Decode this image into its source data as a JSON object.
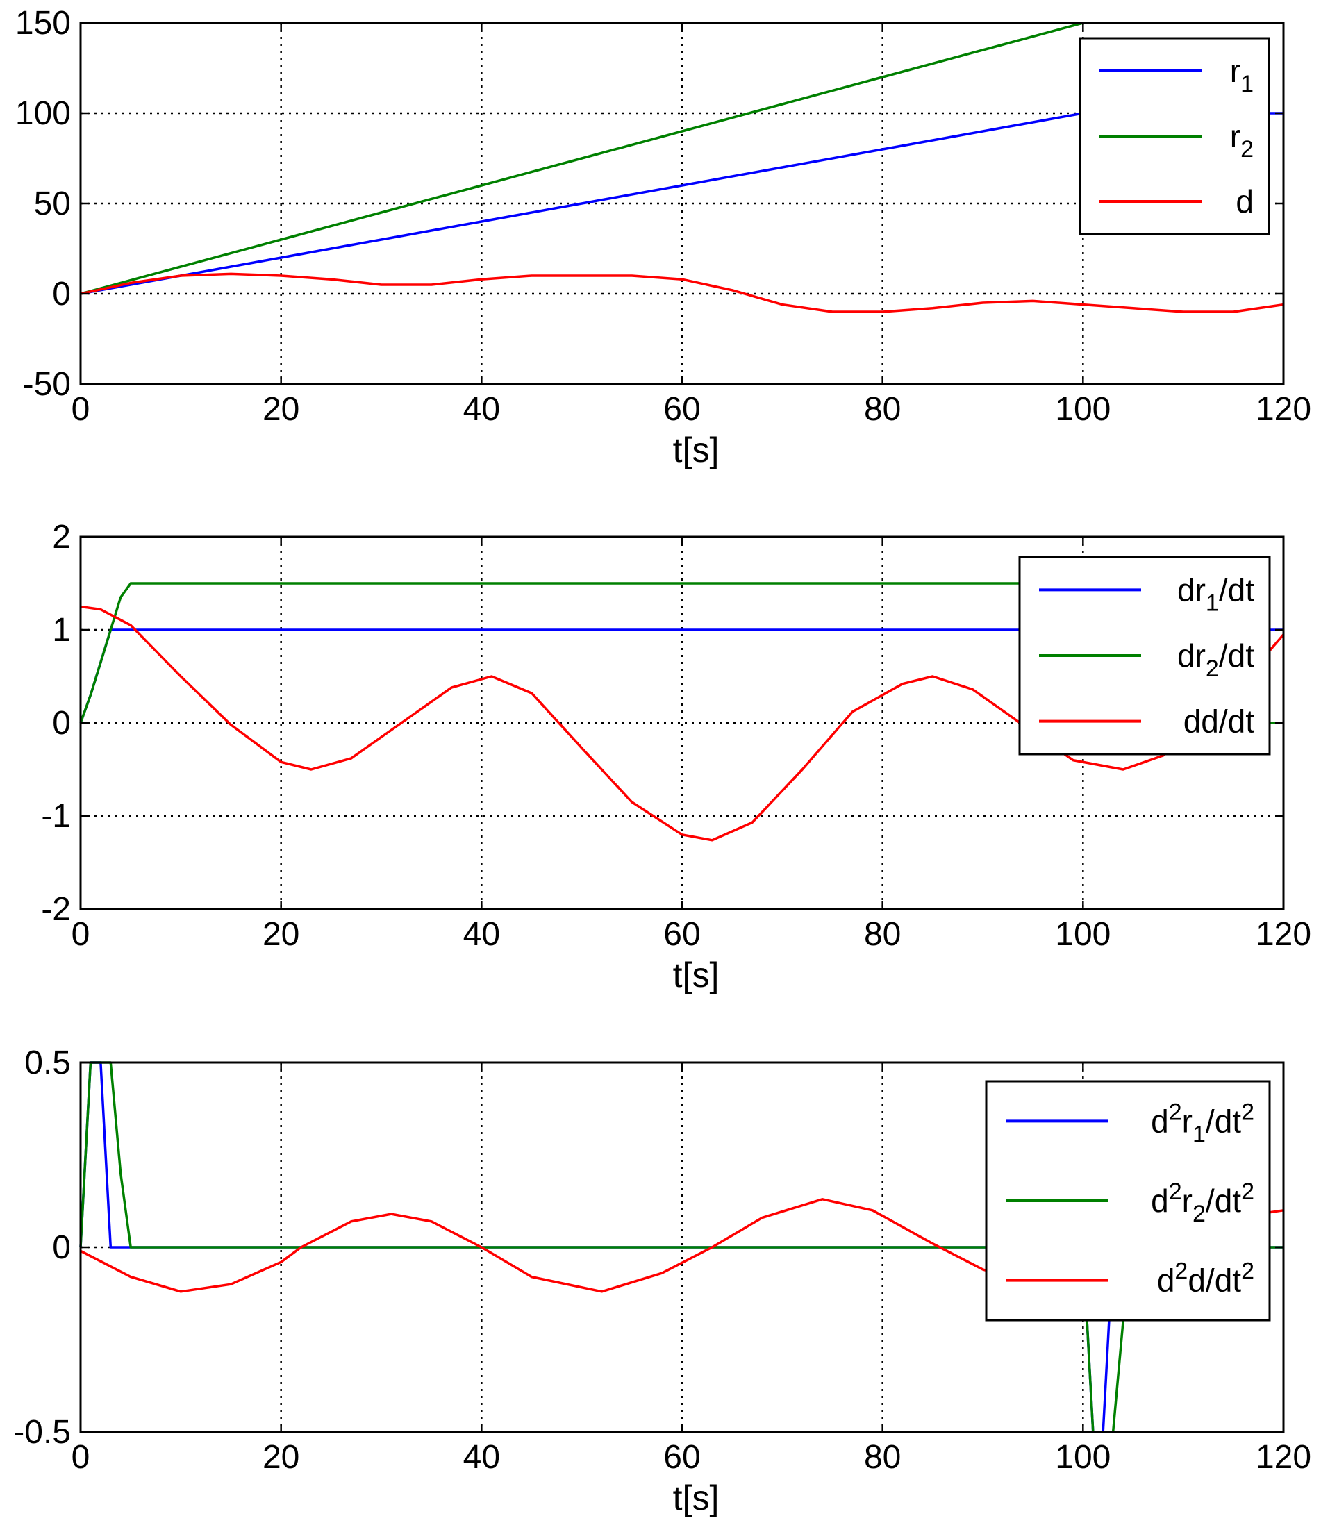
{
  "chart_data": [
    {
      "type": "line",
      "xlabel": "t[s]",
      "xlim": [
        0,
        120
      ],
      "ylim": [
        -50,
        150
      ],
      "xticks": [
        0,
        20,
        40,
        60,
        80,
        100,
        120
      ],
      "yticks": [
        -50,
        0,
        50,
        100,
        150
      ],
      "grid": true,
      "legend_position": "top-right",
      "series": [
        {
          "name": "r1",
          "legend": {
            "main": "r",
            "sub": "1"
          },
          "color": "#0000ff",
          "x": [
            0,
            10,
            20,
            30,
            40,
            50,
            60,
            70,
            80,
            90,
            100,
            110,
            120
          ],
          "y": [
            0,
            10,
            20,
            30,
            40,
            50,
            60,
            70,
            80,
            90,
            100,
            100,
            100
          ]
        },
        {
          "name": "r2",
          "legend": {
            "main": "r",
            "sub": "2"
          },
          "color": "#008000",
          "x": [
            0,
            10,
            20,
            30,
            40,
            50,
            60,
            70,
            80,
            90,
            100
          ],
          "y": [
            0,
            15,
            30,
            45,
            60,
            75,
            90,
            105,
            120,
            135,
            150
          ]
        },
        {
          "name": "d",
          "legend": {
            "main": "d",
            "sub": ""
          },
          "color": "#ff0000",
          "x": [
            0,
            5,
            10,
            15,
            20,
            25,
            30,
            35,
            40,
            45,
            50,
            55,
            60,
            65,
            70,
            75,
            80,
            85,
            90,
            95,
            100,
            105,
            110,
            115,
            120
          ],
          "y": [
            0,
            6,
            10,
            11,
            10,
            8,
            5,
            5,
            8,
            10,
            10,
            10,
            8,
            2,
            -6,
            -10,
            -10,
            -8,
            -5,
            -4,
            -6,
            -8,
            -10,
            -10,
            -6
          ]
        }
      ]
    },
    {
      "type": "line",
      "xlabel": "t[s]",
      "xlim": [
        0,
        120
      ],
      "ylim": [
        -2,
        2
      ],
      "xticks": [
        0,
        20,
        40,
        60,
        80,
        100,
        120
      ],
      "yticks": [
        -2,
        -1,
        0,
        1,
        2
      ],
      "grid": true,
      "legend_position": "top-right",
      "series": [
        {
          "name": "dr1/dt",
          "legend": {
            "main": "dr",
            "sub": "1",
            "tail": "/dt"
          },
          "color": "#0000ff",
          "x": [
            0,
            1,
            2,
            3,
            52,
            120
          ],
          "y": [
            0,
            0.3,
            0.65,
            1,
            1,
            1
          ]
        },
        {
          "name": "dr2/dt",
          "legend": {
            "main": "dr",
            "sub": "2",
            "tail": "/dt"
          },
          "color": "#008000",
          "x": [
            0,
            1,
            2,
            3,
            4,
            5,
            52,
            100,
            101,
            102,
            103,
            104,
            105,
            120
          ],
          "y": [
            0,
            0.3,
            0.65,
            1.0,
            1.35,
            1.5,
            1.5,
            1.5,
            1.2,
            0.8,
            0.4,
            0.1,
            0,
            0
          ]
        },
        {
          "name": "dd/dt",
          "legend": {
            "main": "dd/dt",
            "sub": "",
            "tail": ""
          },
          "color": "#ff0000",
          "x": [
            0,
            2,
            5,
            10,
            15,
            20,
            23,
            27,
            32,
            37,
            41,
            45,
            50,
            55,
            60,
            63,
            67,
            72,
            77,
            82,
            85,
            89,
            94,
            99,
            104,
            108,
            112,
            116,
            120
          ],
          "y": [
            1.25,
            1.22,
            1.05,
            0.5,
            -0.02,
            -0.42,
            -0.5,
            -0.38,
            0.0,
            0.38,
            0.5,
            0.32,
            -0.27,
            -0.85,
            -1.2,
            -1.26,
            -1.07,
            -0.5,
            0.12,
            0.42,
            0.5,
            0.36,
            -0.02,
            -0.4,
            -0.5,
            -0.35,
            -0.03,
            0.45,
            0.95
          ]
        }
      ]
    },
    {
      "type": "line",
      "xlabel": "t[s]",
      "xlim": [
        0,
        120
      ],
      "ylim": [
        -0.5,
        0.5
      ],
      "xticks": [
        0,
        20,
        40,
        60,
        80,
        100,
        120
      ],
      "yticks": [
        -0.5,
        0,
        0.5
      ],
      "grid": true,
      "legend_position": "top-right",
      "series": [
        {
          "name": "d2r1/dt2",
          "legend": {
            "main": "d",
            "sup": "2",
            "main2": "r",
            "sub": "1",
            "tail": "/dt",
            "sup2": "2"
          },
          "color": "#0000ff",
          "x": [
            0,
            1,
            2,
            3,
            4,
            100,
            101,
            102,
            103,
            120
          ],
          "y": [
            0,
            0.5,
            0.5,
            0,
            0,
            0,
            -0.5,
            -0.5,
            0,
            0
          ]
        },
        {
          "name": "d2r2/dt2",
          "legend": {
            "main": "d",
            "sup": "2",
            "main2": "r",
            "sub": "2",
            "tail": "/dt",
            "sup2": "2"
          },
          "color": "#008000",
          "x": [
            0,
            1,
            3,
            4,
            5,
            100,
            101,
            103,
            104,
            105,
            120
          ],
          "y": [
            0,
            0.5,
            0.5,
            0.2,
            0,
            0,
            -0.5,
            -0.5,
            -0.2,
            0,
            0
          ]
        },
        {
          "name": "d2d/dt2",
          "legend": {
            "main": "d",
            "sup": "2",
            "main2": "d",
            "sub": "",
            "tail": "/dt",
            "sup2": "2"
          },
          "color": "#ff0000",
          "x": [
            0,
            5,
            10,
            15,
            20,
            22,
            27,
            31,
            35,
            40,
            45,
            52,
            58,
            63,
            68,
            74,
            79,
            85,
            90,
            95,
            100,
            105,
            110,
            115,
            120
          ],
          "y": [
            -0.01,
            -0.08,
            -0.12,
            -0.1,
            -0.04,
            0,
            0.07,
            0.09,
            0.07,
            0,
            -0.08,
            -0.12,
            -0.07,
            0,
            0.08,
            0.13,
            0.1,
            0.01,
            -0.06,
            -0.1,
            -0.1,
            -0.05,
            0.02,
            0.08,
            0.1
          ]
        }
      ]
    }
  ]
}
